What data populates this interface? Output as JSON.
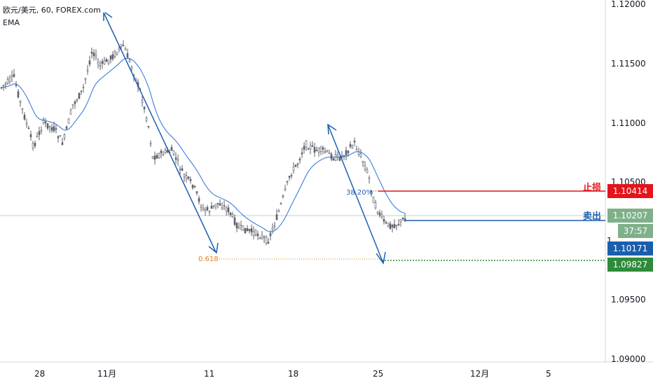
{
  "header": {
    "symbol_line": "欧元/美元, 60, FOREX.com",
    "indicator": "EMA"
  },
  "price_axis": {
    "ticks": [
      "1.12000",
      "1.11500",
      "1.11000",
      "1.10500",
      "1.09500",
      "1.09000"
    ]
  },
  "time_axis": {
    "ticks": [
      "28",
      "11月",
      "11",
      "18",
      "25",
      "12月",
      "5"
    ]
  },
  "levels": {
    "stop_loss": {
      "label": "止损",
      "price": "1.10414",
      "color": "#e3141c"
    },
    "sell": {
      "label": "卖出",
      "price": "1.10207",
      "color": "#1b5fac"
    },
    "current_price": {
      "price": "1.10207",
      "color": "#7fb08a"
    },
    "countdown": {
      "value": "37:57",
      "color": "#7fb08a"
    },
    "last_price": {
      "price": "1.10171",
      "color": "#1b5fac"
    },
    "target": {
      "price": "1.09827",
      "color": "#2e8b3a"
    },
    "partial_tick": "1"
  },
  "fib": {
    "level_618": "0.618",
    "level_382": "38.20%"
  },
  "colors": {
    "candle": "#555555",
    "ema": "#2a6fdb",
    "arrow": "#1f5fb0",
    "stop": "#e3141c",
    "sell": "#1b5fac",
    "target": "#2e8b3a",
    "fib618": "#e4801f"
  }
}
